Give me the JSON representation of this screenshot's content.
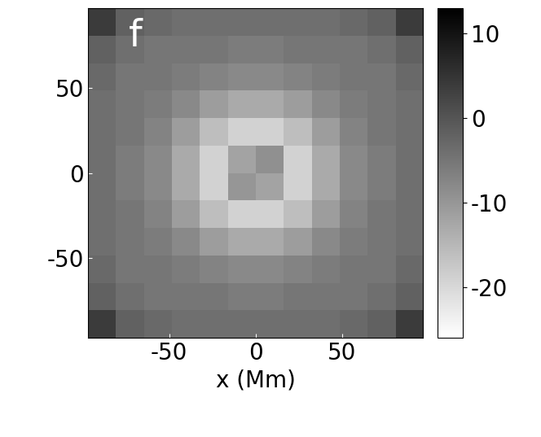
{
  "chart_data": {
    "type": "heatmap",
    "annotation": "f",
    "xlabel": "x (Mm)",
    "xlim": [
      -97,
      97
    ],
    "ylim": [
      -97,
      97
    ],
    "xticks": [
      -50,
      0,
      50
    ],
    "yticks": [
      -50,
      0,
      50
    ],
    "tick_labels": true,
    "color": "gray_r",
    "colorbar": {
      "range": [
        -26,
        13
      ],
      "ticks": [
        -20,
        -10,
        0,
        10
      ]
    },
    "cells": [
      [
        4,
        -2,
        -3,
        -4,
        -4,
        -4,
        -4,
        -4,
        -4,
        -3,
        -2,
        4
      ],
      [
        -2,
        -4,
        -5,
        -5,
        -5,
        -6,
        -6,
        -5,
        -5,
        -5,
        -4,
        -2
      ],
      [
        -3,
        -5,
        -5,
        -6,
        -7,
        -8,
        -8,
        -7,
        -6,
        -5,
        -5,
        -3
      ],
      [
        -4,
        -5,
        -6,
        -8,
        -11,
        -13,
        -13,
        -11,
        -8,
        -6,
        -5,
        -4
      ],
      [
        -4,
        -5,
        -7,
        -11,
        -16,
        -19,
        -19,
        -16,
        -11,
        -7,
        -5,
        -4
      ],
      [
        -4,
        -6,
        -8,
        -13,
        -19,
        -10,
        -12,
        -19,
        -13,
        -8,
        -6,
        -4
      ],
      [
        -4,
        -6,
        -8,
        -13,
        -19,
        -12,
        -9,
        -19,
        -13,
        -8,
        -6,
        -4
      ],
      [
        -4,
        -5,
        -7,
        -11,
        -16,
        -19,
        -19,
        -16,
        -11,
        -7,
        -5,
        -4
      ],
      [
        -4,
        -5,
        -6,
        -8,
        -11,
        -13,
        -13,
        -11,
        -8,
        -6,
        -5,
        -4
      ],
      [
        -3,
        -5,
        -5,
        -6,
        -7,
        -8,
        -8,
        -7,
        -6,
        -5,
        -5,
        -3
      ],
      [
        -2,
        -4,
        -5,
        -5,
        -5,
        -6,
        -6,
        -5,
        -5,
        -5,
        -4,
        -2
      ],
      [
        4,
        -2,
        -3,
        -4,
        -4,
        -4,
        -4,
        -4,
        -4,
        -3,
        -2,
        4
      ]
    ]
  }
}
